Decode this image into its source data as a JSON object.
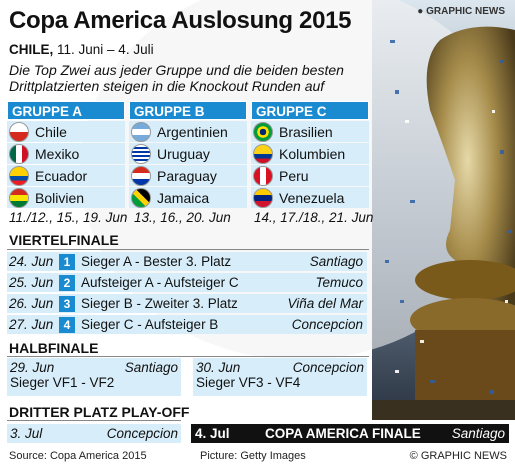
{
  "title": "Copa America Auslosung 2015",
  "subtitle_bold": "CHILE,",
  "subtitle_dates": " 11. Juni – 4. Juli",
  "intro": "Die Top Zwei aus jeder Gruppe und die beiden besten Drittplatzierten steigen in die Knockout Runden auf",
  "groups": [
    {
      "name": "GRUPPE A",
      "dates": "11./12., 15., 19. Jun",
      "teams": [
        {
          "name": "Chile",
          "flag": "chile-flag-icon"
        },
        {
          "name": "Mexiko",
          "flag": "mexico-flag-icon"
        },
        {
          "name": "Ecuador",
          "flag": "ecuador-flag-icon"
        },
        {
          "name": "Bolivien",
          "flag": "bolivia-flag-icon"
        }
      ]
    },
    {
      "name": "GRUPPE B",
      "dates": "13., 16., 20. Jun",
      "teams": [
        {
          "name": "Argentinien",
          "flag": "argentina-flag-icon"
        },
        {
          "name": "Uruguay",
          "flag": "uruguay-flag-icon"
        },
        {
          "name": "Paraguay",
          "flag": "paraguay-flag-icon"
        },
        {
          "name": "Jamaica",
          "flag": "jamaica-flag-icon"
        }
      ]
    },
    {
      "name": "GRUPPE C",
      "dates": "14., 17./18., 21. Jun",
      "teams": [
        {
          "name": "Brasilien",
          "flag": "brazil-flag-icon"
        },
        {
          "name": "Kolumbien",
          "flag": "colombia-flag-icon"
        },
        {
          "name": "Peru",
          "flag": "peru-flag-icon"
        },
        {
          "name": "Venezuela",
          "flag": "venezuela-flag-icon"
        }
      ]
    }
  ],
  "quarterfinals": {
    "heading": "VIERTELFINALE",
    "matches": [
      {
        "date": "24. Jun",
        "num": "1",
        "match": "Sieger A    - Bester 3. Platz",
        "venue": "Santiago"
      },
      {
        "date": "25. Jun",
        "num": "2",
        "match": "Aufsteiger A - Aufsteiger C",
        "venue": "Temuco"
      },
      {
        "date": "26. Jun",
        "num": "3",
        "match": "Sieger B    - Zweiter 3. Platz",
        "venue": "Viña del Mar"
      },
      {
        "date": "27. Jun",
        "num": "4",
        "match": "Sieger C    - Aufsteiger B",
        "venue": "Concepcion"
      }
    ]
  },
  "semifinals": {
    "heading": "HALBFINALE",
    "matches": [
      {
        "date": "29. Jun",
        "venue": "Santiago",
        "match": "Sieger VF1 - VF2"
      },
      {
        "date": "30. Jun",
        "venue": "Concepcion",
        "match": "Sieger VF3 - VF4"
      }
    ]
  },
  "third_place": {
    "heading": "DRITTER PLATZ PLAY-OFF",
    "date": "3. Jul",
    "venue": "Concepcion"
  },
  "final": {
    "date": "4. Jul",
    "title": "COPA AMERICA FINALE",
    "venue": "Santiago"
  },
  "source": "Source: Copa America 2015",
  "picture": "Picture: Getty Images",
  "credit": "© GRAPHIC NEWS",
  "credit_top": "GRAPHIC NEWS",
  "colors": {
    "accent": "#1a8bd0",
    "row": "#d7eefa",
    "final": "#111111"
  }
}
